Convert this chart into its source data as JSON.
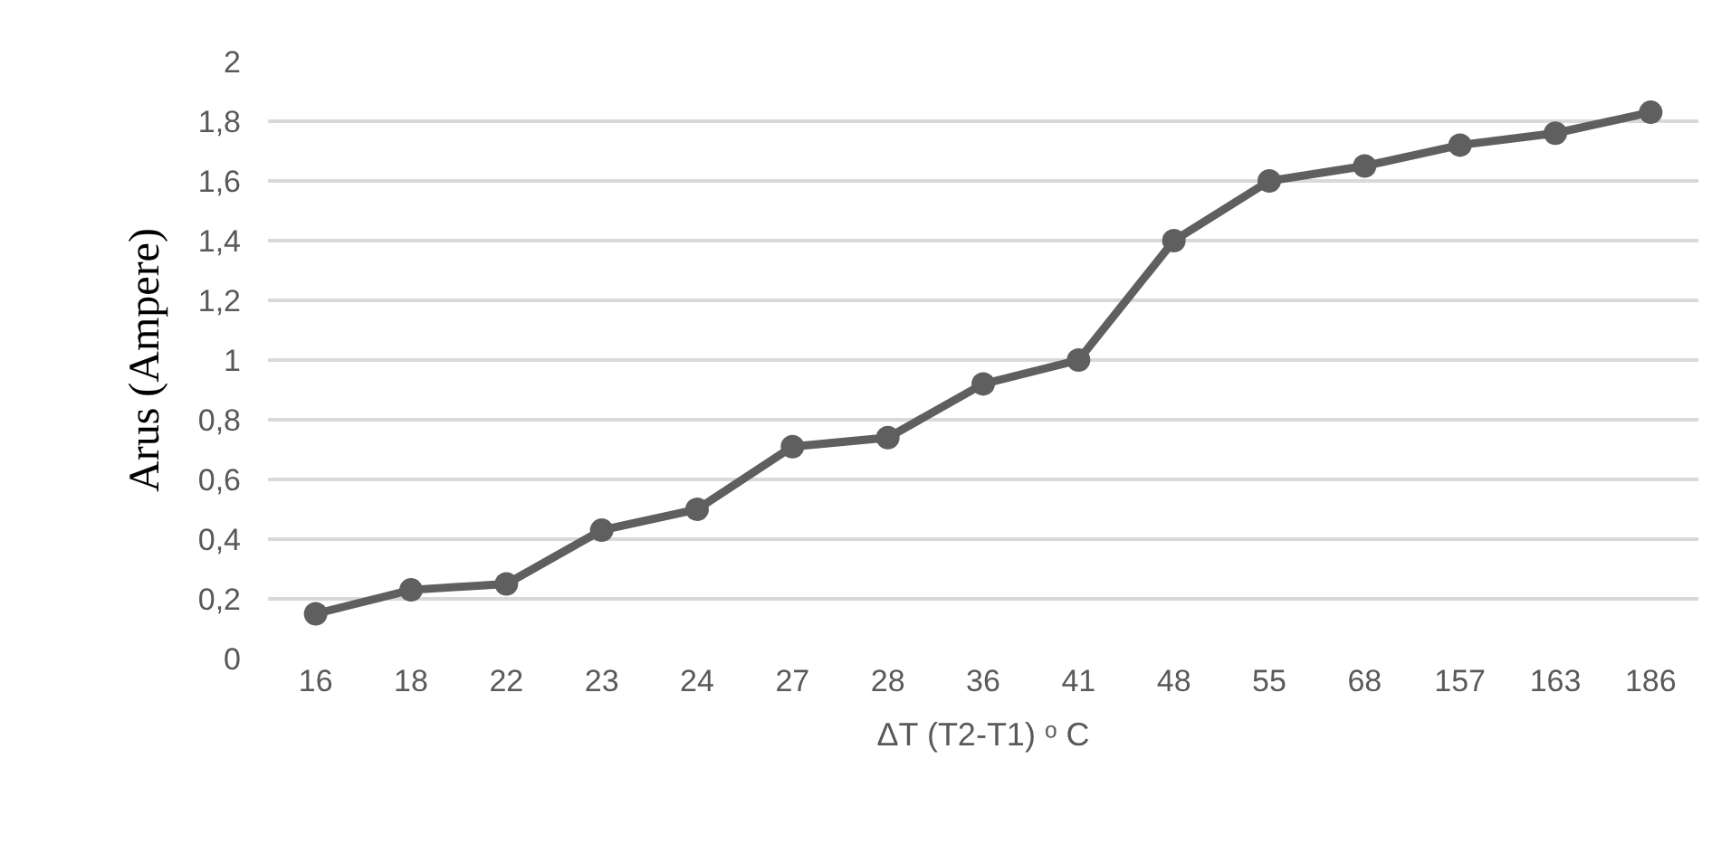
{
  "chart_data": {
    "type": "line",
    "xlabel": "ΔT (T2-T1) ᵒ C",
    "ylabel": "Arus (Ampere)",
    "categories": [
      "16",
      "18",
      "22",
      "23",
      "24",
      "27",
      "28",
      "36",
      "41",
      "48",
      "55",
      "68",
      "157",
      "163",
      "186"
    ],
    "series": [
      {
        "color": "#5f5f5f",
        "values": [
          0.15,
          0.23,
          0.25,
          0.43,
          0.5,
          0.71,
          0.74,
          0.92,
          1.0,
          1.4,
          1.6,
          1.65,
          1.72,
          1.76,
          1.83
        ]
      }
    ],
    "ylim": [
      0,
      2
    ],
    "yticks": [
      0,
      {
        "value": 0.2,
        "label": "0,2"
      },
      {
        "value": 0.4,
        "label": "0,4"
      },
      {
        "value": 0.6,
        "label": "0,6"
      },
      {
        "value": 0.8,
        "label": "0,8"
      },
      1,
      {
        "value": 1.2,
        "label": "1,2"
      },
      {
        "value": 1.4,
        "label": "1,4"
      },
      {
        "value": 1.6,
        "label": "1,6"
      },
      {
        "value": 1.8,
        "label": "1,8"
      },
      2
    ],
    "grid": "y",
    "legend": false,
    "marker": "circle",
    "line_style": "solid"
  }
}
